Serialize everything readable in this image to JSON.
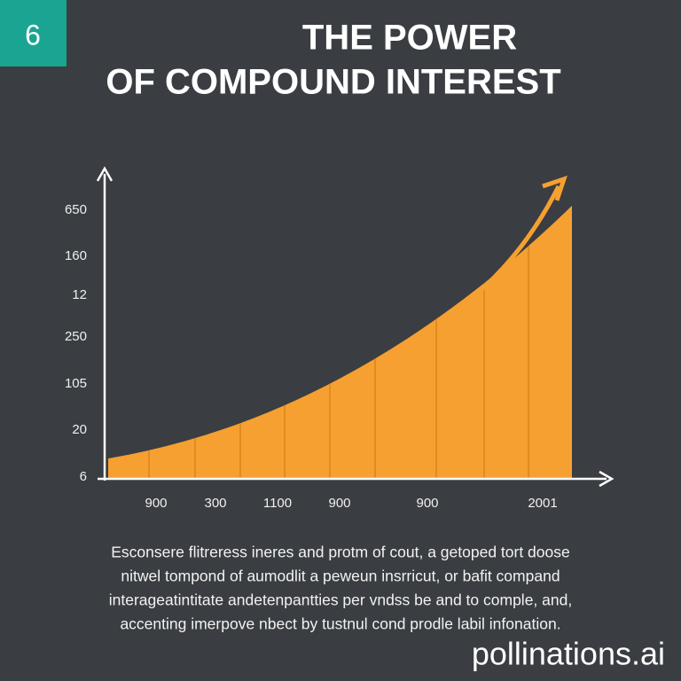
{
  "badge": "6",
  "header": {
    "title_lines": [
      "THE POWER",
      "OF COMPOUND INTEREST"
    ]
  },
  "graph": {
    "y_labels": [
      "650",
      "160",
      "12",
      "250",
      "105",
      "20",
      "6"
    ],
    "x_labels": [
      "900",
      "300",
      "1100",
      "900",
      "900",
      "2001"
    ]
  },
  "caption_lines": [
    "Esconsere flitreress ineres and protm of cout, a getoped tort doose",
    "nitwel tompond of aumodlit a peweun insrricut, or bafit compand",
    "interageatintitate andetenpantties per vndss be and to comple, and,",
    "accenting imerpove nbect by tustnul cond prodle labil infonation."
  ],
  "watermark": "pollinations.ai"
}
